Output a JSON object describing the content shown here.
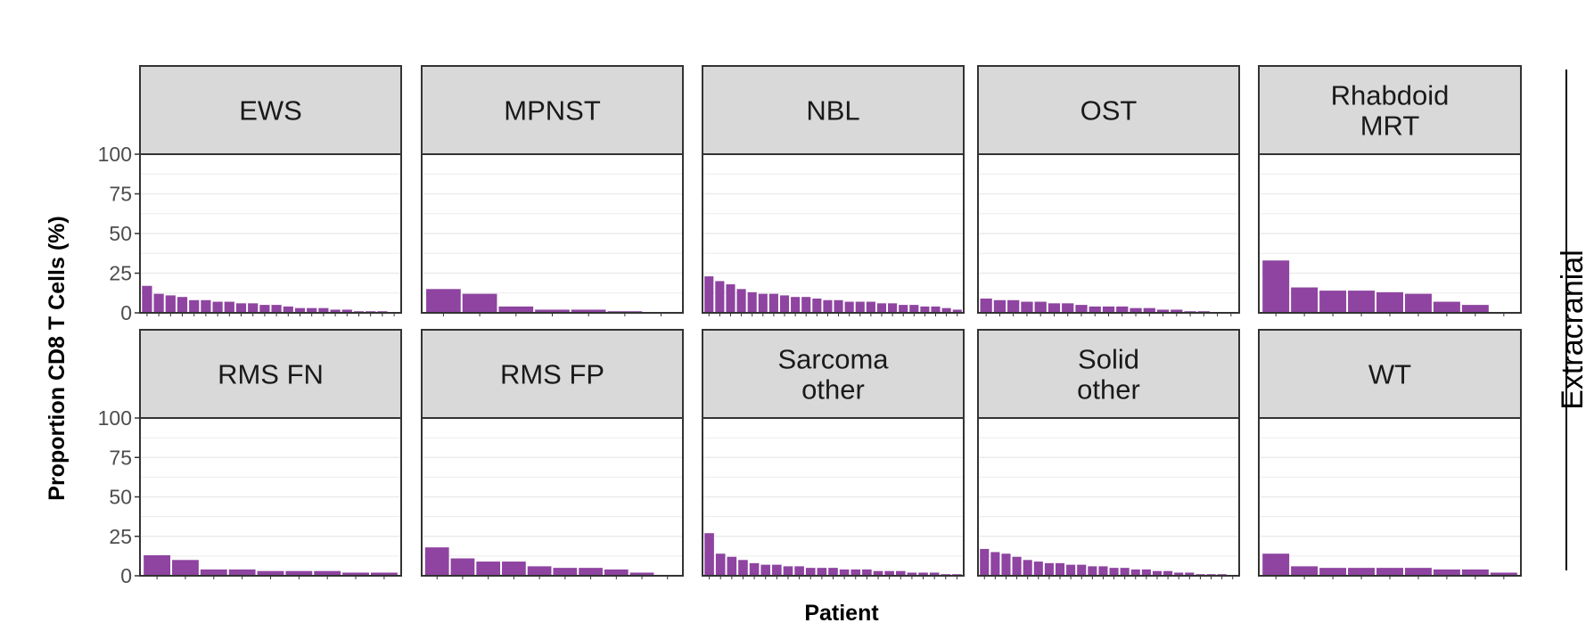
{
  "chart_data": {
    "type": "bar",
    "layout": "facet-grid-2x5",
    "xlabel": "Patient",
    "ylabel": "Proportion CD8 T Cells (%)",
    "ylim": [
      0,
      100
    ],
    "yticks": [
      "0",
      "25",
      "50",
      "75",
      "100"
    ],
    "grid": true,
    "side_label": "Extracranial",
    "colors": {
      "bar": "#8e44a0",
      "strip_fill": "#d9d9d9",
      "grid": "#ebebeb",
      "panel_border": "#333333"
    },
    "facets": [
      {
        "label": [
          "EWS"
        ],
        "values": [
          17,
          12,
          11,
          10,
          8,
          8,
          7,
          7,
          6,
          6,
          5,
          5,
          4,
          3,
          3,
          3,
          2,
          2,
          1,
          1,
          1,
          0
        ]
      },
      {
        "label": [
          "MPNST"
        ],
        "values": [
          15,
          12,
          4,
          2,
          2,
          1,
          0
        ]
      },
      {
        "label": [
          "NBL"
        ],
        "values": [
          23,
          20,
          18,
          15,
          13,
          12,
          12,
          11,
          10,
          10,
          9,
          8,
          8,
          7,
          7,
          7,
          6,
          6,
          5,
          5,
          4,
          4,
          3,
          2
        ]
      },
      {
        "label": [
          "OST"
        ],
        "values": [
          9,
          8,
          8,
          7,
          7,
          6,
          6,
          5,
          4,
          4,
          4,
          3,
          3,
          2,
          2,
          1,
          1,
          0,
          0
        ]
      },
      {
        "label": [
          "Rhabdoid",
          "MRT"
        ],
        "values": [
          33,
          16,
          14,
          14,
          13,
          12,
          7,
          5,
          0
        ]
      },
      {
        "label": [
          "RMS FN"
        ],
        "values": [
          13,
          10,
          4,
          4,
          3,
          3,
          3,
          2,
          2
        ]
      },
      {
        "label": [
          "RMS FP"
        ],
        "values": [
          18,
          11,
          9,
          9,
          6,
          5,
          5,
          4,
          2,
          0
        ]
      },
      {
        "label": [
          "Sarcoma",
          "other"
        ],
        "values": [
          27,
          14,
          12,
          10,
          8,
          7,
          7,
          6,
          6,
          5,
          5,
          5,
          4,
          4,
          4,
          3,
          3,
          3,
          2,
          2,
          2,
          1,
          1
        ]
      },
      {
        "label": [
          "Solid",
          "other"
        ],
        "values": [
          17,
          15,
          14,
          12,
          10,
          9,
          8,
          8,
          7,
          7,
          6,
          6,
          5,
          5,
          4,
          4,
          3,
          3,
          2,
          2,
          1,
          1,
          1,
          0
        ]
      },
      {
        "label": [
          "WT"
        ],
        "values": [
          14,
          6,
          5,
          5,
          5,
          5,
          4,
          4,
          2
        ]
      }
    ]
  }
}
